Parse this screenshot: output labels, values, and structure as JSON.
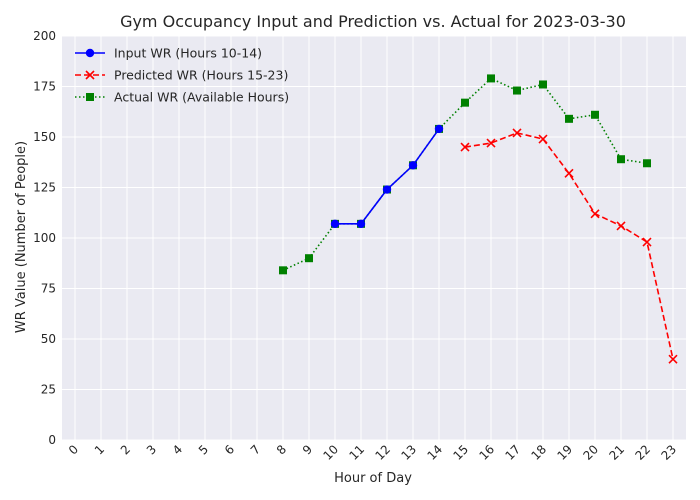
{
  "chart_data": {
    "type": "line",
    "title": "Gym Occupancy Input and Prediction vs. Actual for 2023-03-30",
    "xlabel": "Hour of Day",
    "ylabel": "WR Value (Number of People)",
    "xlim": [
      -0.5,
      23.5
    ],
    "ylim": [
      0,
      200
    ],
    "x_ticks": [
      0,
      1,
      2,
      3,
      4,
      5,
      6,
      7,
      8,
      9,
      10,
      11,
      12,
      13,
      14,
      15,
      16,
      17,
      18,
      19,
      20,
      21,
      22,
      23
    ],
    "y_ticks": [
      0,
      25,
      50,
      75,
      100,
      125,
      150,
      175,
      200
    ],
    "grid": true,
    "legend_position": "top-left",
    "series": [
      {
        "name": "Input WR (Hours 10-14)",
        "color": "#0000ff",
        "line_style": "solid",
        "marker": "circle",
        "x": [
          10,
          11,
          12,
          13,
          14
        ],
        "y": [
          107,
          107,
          124,
          136,
          154
        ]
      },
      {
        "name": "Predicted WR (Hours 15-23)",
        "color": "#ff0000",
        "line_style": "dashed",
        "marker": "x",
        "x": [
          15,
          16,
          17,
          18,
          19,
          20,
          21,
          22,
          23
        ],
        "y": [
          145,
          147,
          152,
          149,
          132,
          112,
          106,
          98,
          40
        ]
      },
      {
        "name": "Actual WR (Available Hours)",
        "color": "#008000",
        "line_style": "dotted",
        "marker": "square",
        "x": [
          8,
          9,
          10,
          11,
          12,
          13,
          14,
          15,
          16,
          17,
          18,
          19,
          20,
          21,
          22
        ],
        "y": [
          84,
          90,
          107,
          107,
          124,
          136,
          154,
          167,
          179,
          173,
          176,
          159,
          161,
          139,
          137
        ]
      }
    ]
  }
}
